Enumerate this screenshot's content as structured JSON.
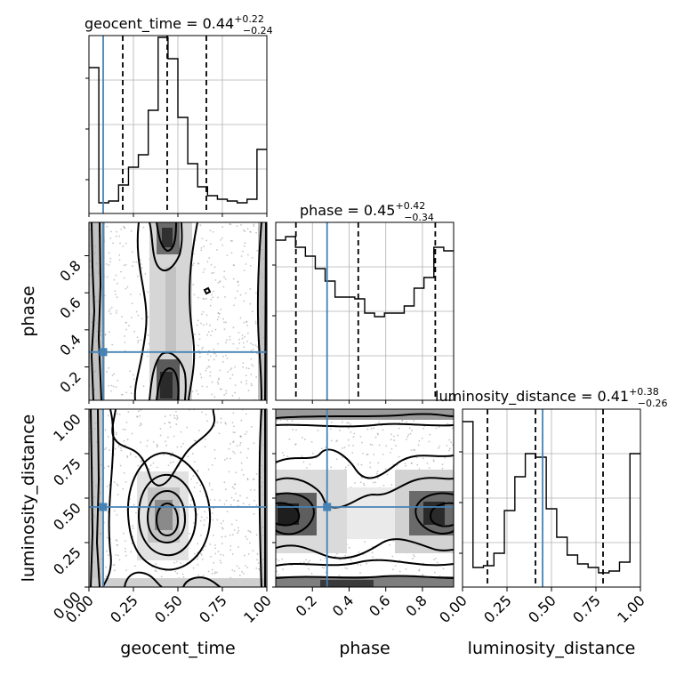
{
  "chart_data": {
    "type": "corner",
    "parameters": [
      "geocent_time",
      "phase",
      "luminosity_distance"
    ],
    "grid": true,
    "truths": {
      "geocent_time": 0.08,
      "phase": 0.28,
      "luminosity_distance": 0.45
    },
    "truth_color": "#4682b4",
    "diagonal": [
      {
        "name": "geocent_time",
        "title": {
          "label": "geocent_time",
          "median": "0.44",
          "plus": "+0.22",
          "minus": "−0.24"
        },
        "xlim": [
          0,
          1
        ],
        "quantiles": [
          0.19,
          0.44,
          0.66
        ],
        "bin_counts": [
          0.82,
          0.06,
          0.07,
          0.16,
          0.26,
          0.33,
          0.58,
          0.99,
          0.87,
          0.54,
          0.28,
          0.15,
          0.1,
          0.08,
          0.07,
          0.06,
          0.08,
          0.36
        ]
      },
      {
        "name": "phase",
        "title": {
          "label": "phase",
          "median": "0.45",
          "plus": "+0.42",
          "minus": "−0.34"
        },
        "xlim": [
          0,
          0.97
        ],
        "quantiles": [
          0.11,
          0.45,
          0.87
        ],
        "bin_counts": [
          0.9,
          0.92,
          0.86,
          0.81,
          0.74,
          0.67,
          0.58,
          0.58,
          0.57,
          0.49,
          0.47,
          0.49,
          0.49,
          0.53,
          0.63,
          0.69,
          0.86,
          0.84
        ]
      },
      {
        "name": "luminosity_distance",
        "title": {
          "label": "luminosity_distance",
          "median": "0.41",
          "plus": "+0.38",
          "minus": "−0.26"
        },
        "xlim": [
          0,
          1
        ],
        "quantiles": [
          0.14,
          0.41,
          0.79
        ],
        "bin_counts": [
          0.93,
          0.11,
          0.12,
          0.19,
          0.43,
          0.62,
          0.75,
          0.73,
          0.44,
          0.28,
          0.18,
          0.13,
          0.11,
          0.08,
          0.09,
          0.14,
          0.75
        ]
      }
    ],
    "panels_2d": [
      {
        "x": "geocent_time",
        "y": "phase",
        "xlim": [
          0,
          1
        ],
        "ylim": [
          0.02,
          0.98
        ]
      },
      {
        "x": "geocent_time",
        "y": "luminosity_distance",
        "xlim": [
          0,
          1
        ],
        "ylim": [
          0,
          1
        ]
      },
      {
        "x": "phase",
        "y": "luminosity_distance",
        "xlim": [
          0,
          0.97
        ],
        "ylim": [
          0,
          1
        ]
      }
    ],
    "axes": {
      "geocent_time": {
        "xlabel": "geocent_time",
        "ticks": [
          "0.00",
          "0.25",
          "0.50",
          "0.75",
          "1.00"
        ],
        "tick_values": [
          0,
          0.25,
          0.5,
          0.75,
          1.0
        ]
      },
      "phase": {
        "label": "phase",
        "ticks": [
          "0.2",
          "0.4",
          "0.6",
          "0.8"
        ],
        "tick_values": [
          0.2,
          0.4,
          0.6,
          0.8
        ]
      },
      "luminosity_distance": {
        "label": "luminosity_distance",
        "ticks": [
          "0.00",
          "0.25",
          "0.50",
          "0.75",
          "1.00"
        ],
        "tick_values": [
          0,
          0.25,
          0.5,
          0.75,
          1.0
        ]
      }
    }
  }
}
